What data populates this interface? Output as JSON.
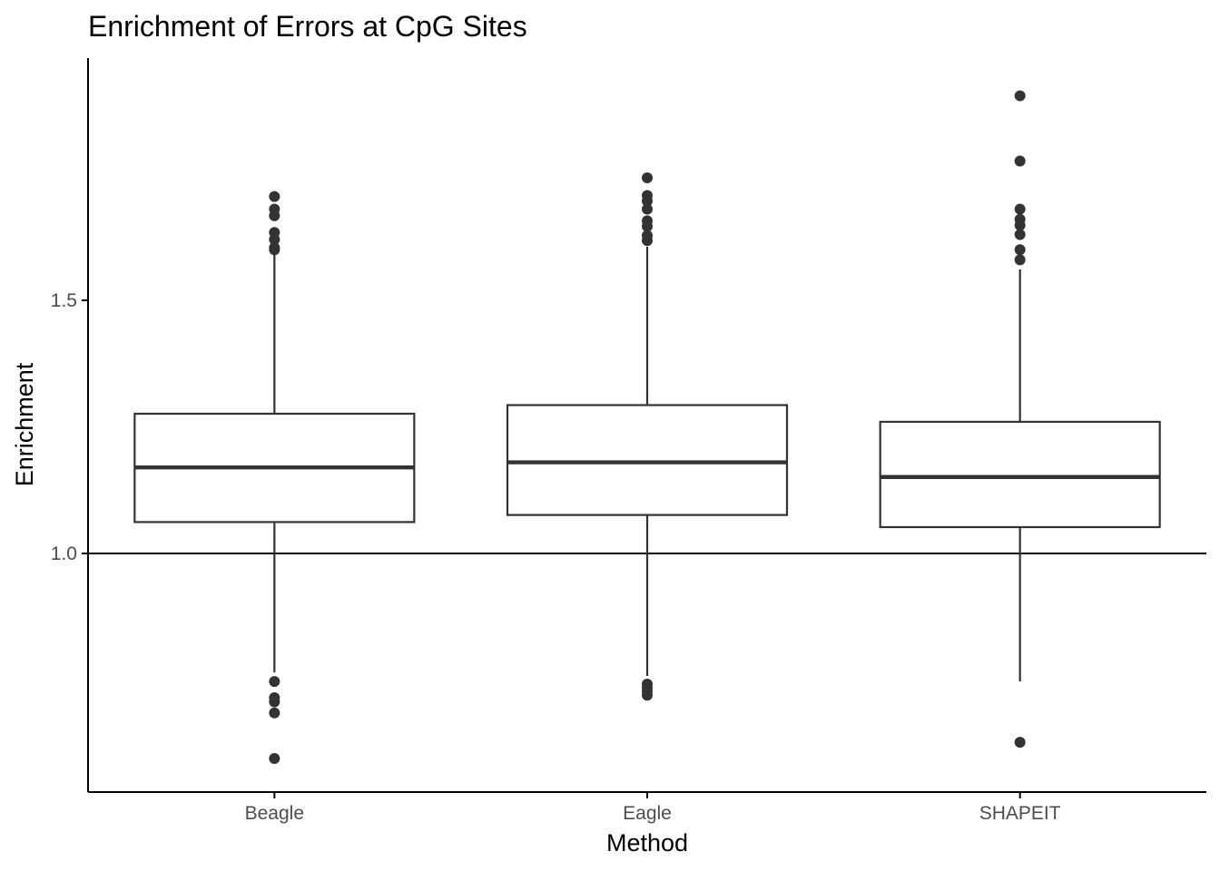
{
  "chart_data": {
    "type": "boxplot",
    "title": "Enrichment of Errors at CpG Sites",
    "xlabel": "Method",
    "ylabel": "Enrichment",
    "categories": [
      "Beagle",
      "Eagle",
      "SHAPEIT"
    ],
    "yticks": [
      1.0,
      1.5
    ],
    "ytick_labels": [
      "1.0",
      "1.5"
    ],
    "ylim": [
      0.53,
      2.03
    ],
    "reference_line": 1.0,
    "grid": false,
    "boxes": [
      {
        "category": "Beagle",
        "whisker_low": 0.765,
        "q1": 1.062,
        "median": 1.17,
        "q3": 1.276,
        "whisker_high": 1.592,
        "outliers": [
          0.595,
          0.685,
          0.707,
          0.715,
          0.747,
          1.6,
          1.604,
          1.62,
          1.634,
          1.667,
          1.68,
          1.705
        ]
      },
      {
        "category": "Eagle",
        "whisker_low": 0.758,
        "q1": 1.076,
        "median": 1.18,
        "q3": 1.293,
        "whisker_high": 1.606,
        "outliers": [
          0.72,
          0.728,
          0.735,
          0.742,
          1.618,
          1.628,
          1.646,
          1.657,
          1.68,
          1.696,
          1.707,
          1.742
        ]
      },
      {
        "category": "SHAPEIT",
        "whisker_low": 0.747,
        "q1": 1.052,
        "median": 1.151,
        "q3": 1.26,
        "whisker_high": 1.561,
        "outliers": [
          0.627,
          1.58,
          1.6,
          1.63,
          1.648,
          1.66,
          1.68,
          1.775,
          1.904
        ]
      }
    ],
    "colors": {
      "box_stroke": "#333333",
      "box_fill": "#ffffff",
      "outlier": "#333333",
      "axis": "#000000",
      "reference_line": "#000000",
      "tick_label": "#4d4d4d"
    }
  }
}
